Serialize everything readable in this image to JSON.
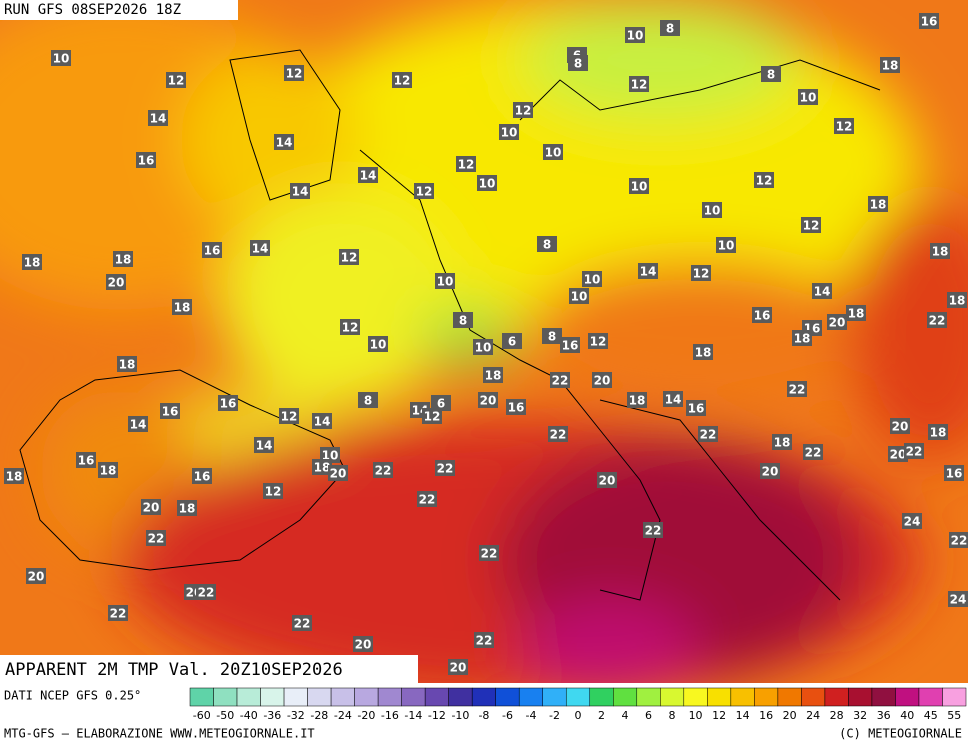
{
  "header": {
    "run": "RUN GFS 08SEP2026 18Z"
  },
  "footer": {
    "title": "APPARENT 2M TMP Val. 20Z10SEP2026",
    "source": "DATI NCEP GFS 0.25°",
    "credit": "MTG-GFS — ELABORAZIONE WWW.METEOGIORNALE.IT",
    "copyright": "(C) METEOGIORNALE"
  },
  "legend": {
    "labels": [
      -60,
      -50,
      -40,
      -36,
      -32,
      -28,
      -24,
      -20,
      -16,
      -14,
      -12,
      -10,
      -8,
      -6,
      -4,
      -2,
      0,
      2,
      4,
      6,
      8,
      10,
      12,
      14,
      16,
      20,
      24,
      28,
      32,
      36,
      40,
      45,
      55
    ],
    "colors": [
      "#5fd3a8",
      "#8fe0c0",
      "#b8ecd8",
      "#d8f4ea",
      "#e8eef8",
      "#d8d8f0",
      "#c8c0e8",
      "#b8a8e0",
      "#a088d0",
      "#8868c0",
      "#6848b0",
      "#4030a0",
      "#2030b8",
      "#1050d8",
      "#1880f0",
      "#30b0f8",
      "#40d8f0",
      "#30d060",
      "#60e040",
      "#a0f040",
      "#d8f830",
      "#f8f820",
      "#f8e000",
      "#f8c000",
      "#f8a000",
      "#f07800",
      "#e85010",
      "#d02020",
      "#a81030",
      "#901040",
      "#c01080",
      "#e040b0",
      "#f8a0e0"
    ]
  },
  "map_labels": [
    10,
    12,
    12,
    12,
    10,
    8,
    6,
    8,
    16,
    18,
    8,
    12,
    10,
    14,
    14,
    12,
    10,
    10,
    12,
    16,
    14,
    12,
    10,
    12,
    10,
    14,
    12,
    18,
    10,
    12,
    16,
    14,
    8,
    10,
    18,
    18,
    18,
    12,
    20,
    14,
    12,
    10,
    10,
    10,
    14,
    18,
    18,
    16,
    18,
    8,
    16,
    22,
    12,
    18,
    20,
    10,
    8,
    6,
    16,
    12,
    10,
    18,
    18,
    18,
    22,
    20,
    22,
    8,
    16,
    18,
    14,
    20,
    16,
    16,
    16,
    14,
    12,
    6,
    12,
    14,
    14,
    22,
    22,
    20,
    18,
    14,
    18,
    22,
    20,
    22,
    16,
    10,
    18,
    20,
    22,
    22,
    18,
    16,
    18,
    20,
    16,
    20,
    12,
    22,
    20,
    18,
    24,
    22,
    22,
    22,
    22,
    20,
    20,
    22,
    24,
    22,
    22,
    22,
    20,
    20
  ]
}
